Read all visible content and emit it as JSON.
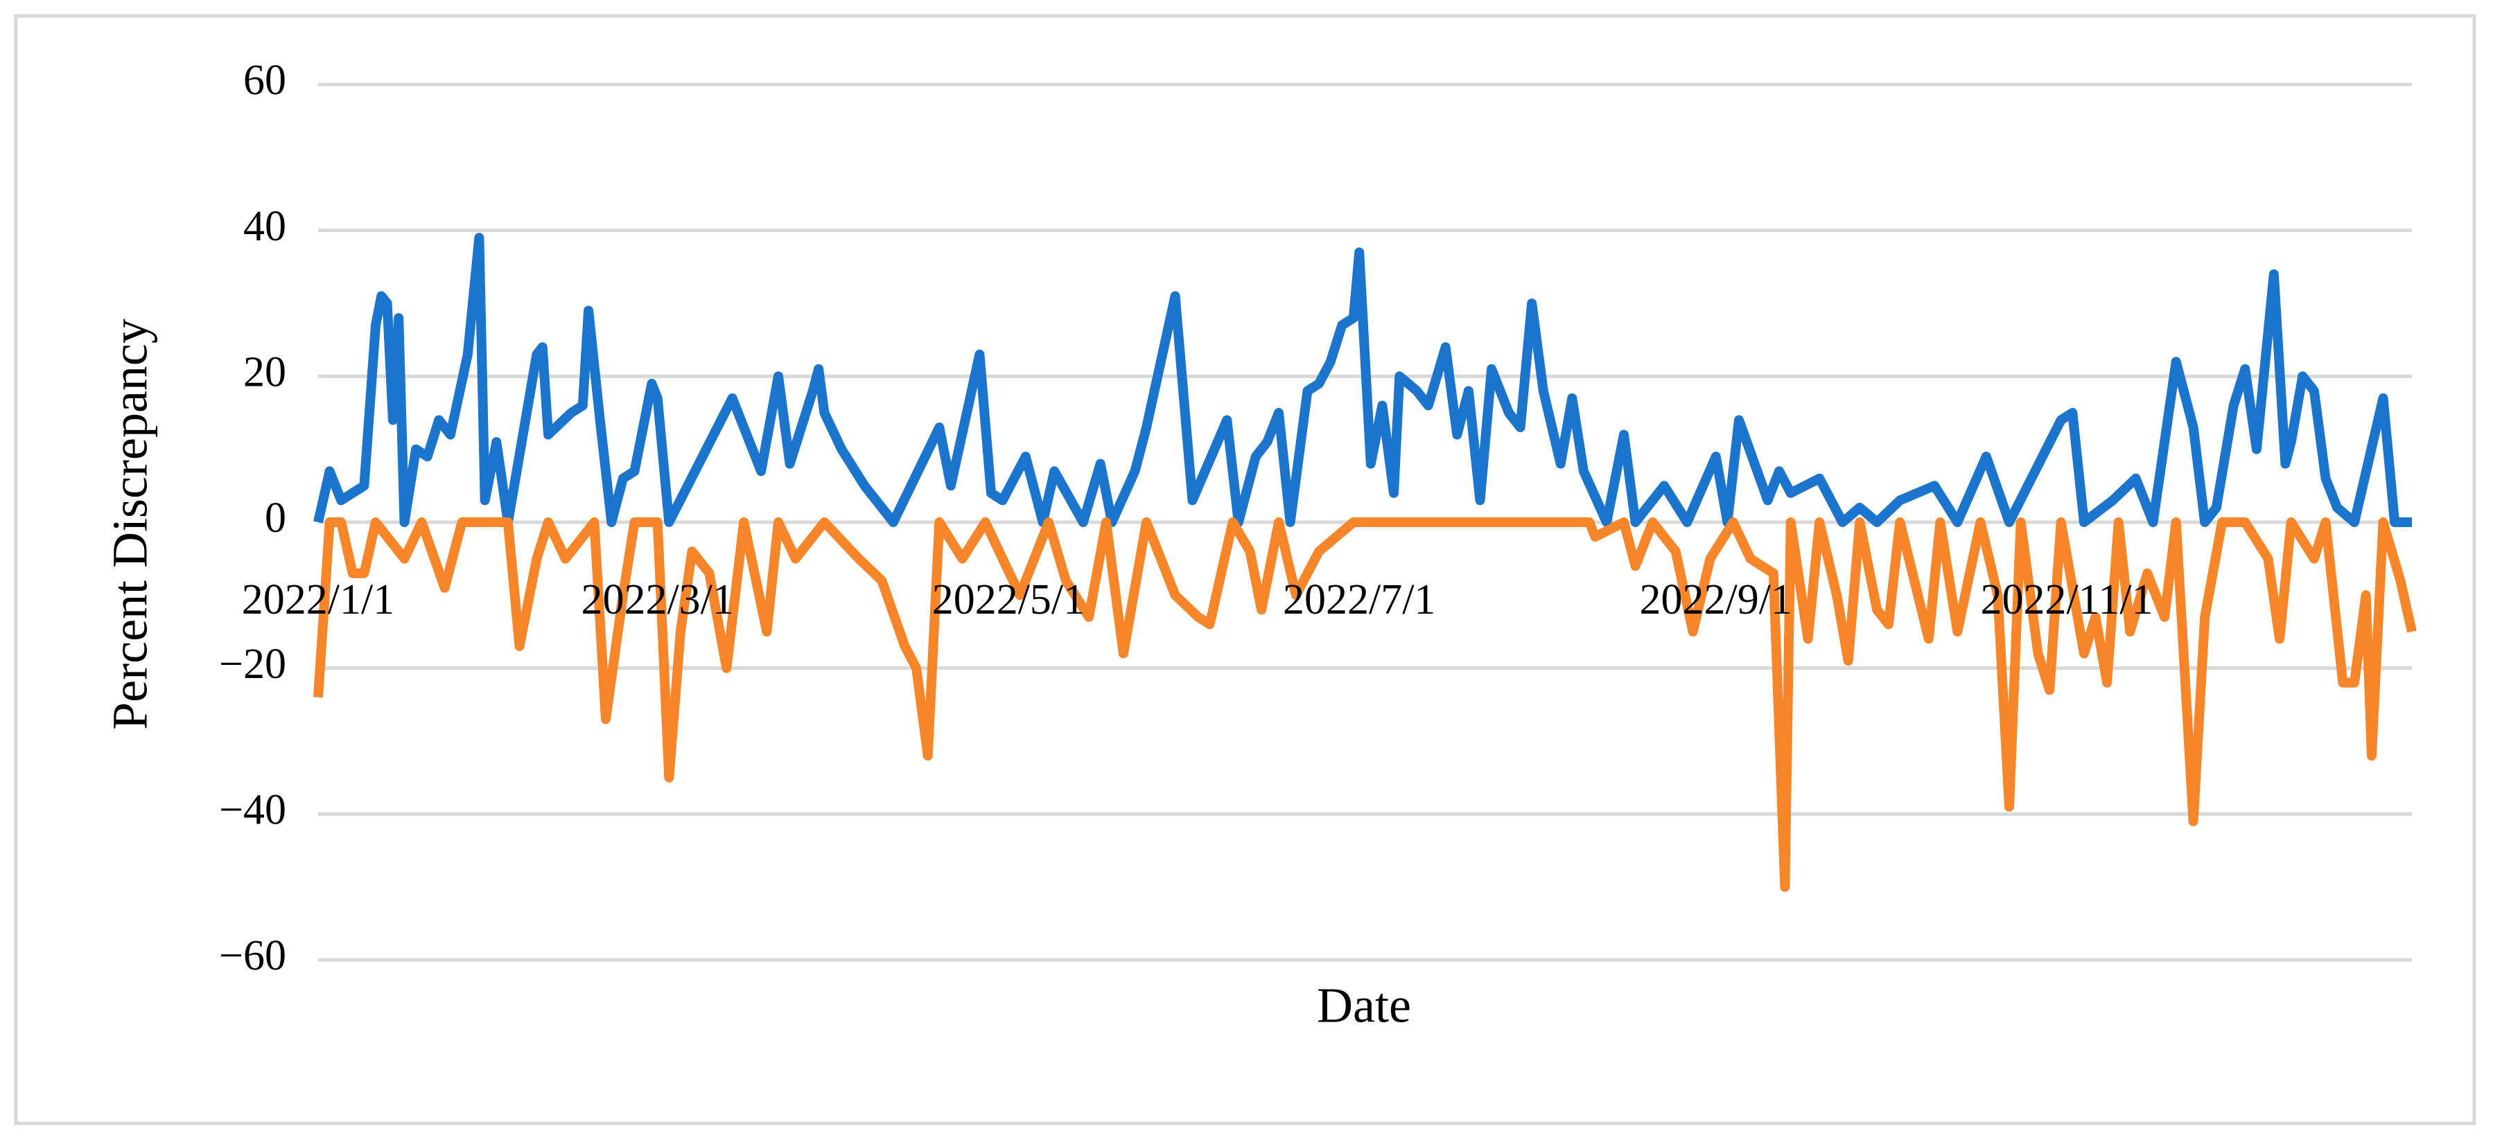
{
  "chart_data": {
    "type": "line",
    "x_label": "Date",
    "y_label": "Percent Discrepancy",
    "xlim": [
      "2022/1/1",
      "2022/12/31"
    ],
    "xticks": [
      "2022/1/1",
      "2022/3/1",
      "2022/5/1",
      "2022/7/1",
      "2022/9/1",
      "2022/11/1"
    ],
    "ylim": [
      -60,
      60
    ],
    "yticks": [
      60,
      40,
      20,
      0,
      {
        "value": -20,
        "label": "−20"
      },
      {
        "value": -40,
        "label": "−40"
      },
      {
        "value": -60,
        "label": "−60"
      }
    ],
    "grid": true,
    "series": [
      {
        "color": "#1b75cc",
        "x": [
          "2022/1/1",
          "2022/1/3",
          "2022/1/5",
          "2022/1/9",
          "2022/1/11",
          "2022/1/12",
          "2022/1/13",
          "2022/1/14",
          "2022/1/15",
          "2022/1/16",
          "2022/1/18",
          "2022/1/20",
          "2022/1/22",
          "2022/1/24",
          "2022/1/27",
          "2022/1/29",
          "2022/1/30",
          "2022/2/1",
          "2022/2/3",
          "2022/2/8",
          "2022/2/9",
          "2022/2/10",
          "2022/2/14",
          "2022/2/16",
          "2022/2/17",
          "2022/2/19",
          "2022/2/21",
          "2022/2/23",
          "2022/2/25",
          "2022/2/28",
          "2022/3/1",
          "2022/3/3",
          "2022/3/14",
          "2022/3/17",
          "2022/3/19",
          "2022/3/22",
          "2022/3/24",
          "2022/3/28",
          "2022/3/29",
          "2022/3/30",
          "2022/4/2",
          "2022/4/6",
          "2022/4/11",
          "2022/4/19",
          "2022/4/21",
          "2022/4/26",
          "2022/4/28",
          "2022/4/30",
          "2022/5/4",
          "2022/5/7",
          "2022/5/9",
          "2022/5/14",
          "2022/5/17",
          "2022/5/19",
          "2022/5/23",
          "2022/5/25",
          "2022/5/30",
          "2022/6/2",
          "2022/6/8",
          "2022/6/10",
          "2022/6/13",
          "2022/6/15",
          "2022/6/17",
          "2022/6/19",
          "2022/6/22",
          "2022/6/24",
          "2022/6/26",
          "2022/6/28",
          "2022/6/30",
          "2022/7/1",
          "2022/7/3",
          "2022/7/5",
          "2022/7/7",
          "2022/7/8",
          "2022/7/11",
          "2022/7/13",
          "2022/7/16",
          "2022/7/18",
          "2022/7/20",
          "2022/7/22",
          "2022/7/24",
          "2022/7/27",
          "2022/7/29",
          "2022/7/31",
          "2022/8/2",
          "2022/8/5",
          "2022/8/7",
          "2022/8/9",
          "2022/8/13",
          "2022/8/16",
          "2022/8/18",
          "2022/8/23",
          "2022/8/27",
          "2022/9/1",
          "2022/9/3",
          "2022/9/5",
          "2022/9/10",
          "2022/9/12",
          "2022/9/14",
          "2022/9/19",
          "2022/9/23",
          "2022/9/26",
          "2022/9/29",
          "2022/10/3",
          "2022/10/9",
          "2022/10/13",
          "2022/10/18",
          "2022/10/22",
          "2022/10/31",
          "2022/11/2",
          "2022/11/4",
          "2022/11/9",
          "2022/11/13",
          "2022/11/16",
          "2022/11/20",
          "2022/11/23",
          "2022/11/25",
          "2022/11/27",
          "2022/11/30",
          "2022/12/2",
          "2022/12/4",
          "2022/12/7",
          "2022/12/9",
          "2022/12/10",
          "2022/12/12",
          "2022/12/14",
          "2022/12/16",
          "2022/12/18",
          "2022/12/21",
          "2022/12/26",
          "2022/12/28",
          "2022/12/31"
        ],
        "values": [
          0,
          7,
          3,
          5,
          27,
          31,
          30,
          14,
          28,
          0,
          10,
          9,
          14,
          12,
          23,
          39,
          3,
          11,
          0,
          23,
          24,
          12,
          15,
          16,
          29,
          14,
          0,
          6,
          7,
          19,
          17,
          0,
          17,
          11,
          7,
          20,
          8,
          18,
          21,
          15,
          10,
          5,
          0,
          13,
          5,
          23,
          4,
          3,
          9,
          0,
          7,
          0,
          8,
          0,
          7,
          13,
          31,
          3,
          14,
          0,
          9,
          11,
          15,
          0,
          18,
          19,
          22,
          27,
          28,
          37,
          8,
          16,
          4,
          20,
          18,
          16,
          24,
          12,
          18,
          3,
          21,
          15,
          13,
          30,
          18,
          8,
          17,
          7,
          0,
          12,
          0,
          5,
          0,
          9,
          0,
          14,
          3,
          7,
          4,
          6,
          0,
          2,
          0,
          3,
          5,
          0,
          9,
          0,
          14,
          15,
          0,
          3,
          6,
          0,
          22,
          13,
          0,
          2,
          16,
          21,
          10,
          34,
          8,
          11,
          20,
          18,
          6,
          2,
          0,
          17,
          0,
          0
        ]
      },
      {
        "color": "#f7862b",
        "x": [
          "2022/1/1",
          "2022/1/3",
          "2022/1/5",
          "2022/1/7",
          "2022/1/9",
          "2022/1/11",
          "2022/1/16",
          "2022/1/19",
          "2022/1/23",
          "2022/1/26",
          "2022/2/3",
          "2022/2/5",
          "2022/2/8",
          "2022/2/10",
          "2022/2/13",
          "2022/2/18",
          "2022/2/20",
          "2022/2/23",
          "2022/2/25",
          "2022/3/1",
          "2022/3/3",
          "2022/3/5",
          "2022/3/7",
          "2022/3/10",
          "2022/3/13",
          "2022/3/16",
          "2022/3/20",
          "2022/3/22",
          "2022/3/25",
          "2022/3/30",
          "2022/4/5",
          "2022/4/9",
          "2022/4/13",
          "2022/4/15",
          "2022/4/17",
          "2022/4/19",
          "2022/4/23",
          "2022/4/27",
          "2022/4/30",
          "2022/5/3",
          "2022/5/8",
          "2022/5/11",
          "2022/5/15",
          "2022/5/18",
          "2022/5/21",
          "2022/5/25",
          "2022/5/30",
          "2022/6/3",
          "2022/6/5",
          "2022/6/9",
          "2022/6/12",
          "2022/6/14",
          "2022/6/17",
          "2022/6/20",
          "2022/6/24",
          "2022/6/30",
          "2022/8/10",
          "2022/8/11",
          "2022/8/16",
          "2022/8/18",
          "2022/8/21",
          "2022/8/25",
          "2022/8/28",
          "2022/8/31",
          "2022/9/4",
          "2022/9/7",
          "2022/9/11",
          "2022/9/13",
          "2022/9/14",
          "2022/9/17",
          "2022/9/19",
          "2022/9/22",
          "2022/9/24",
          "2022/9/26",
          "2022/9/29",
          "2022/10/1",
          "2022/10/3",
          "2022/10/8",
          "2022/10/10",
          "2022/10/13",
          "2022/10/17",
          "2022/10/20",
          "2022/10/22",
          "2022/10/24",
          "2022/10/27",
          "2022/10/29",
          "2022/10/31",
          "2022/11/4",
          "2022/11/6",
          "2022/11/8",
          "2022/11/10",
          "2022/11/12",
          "2022/11/15",
          "2022/11/18",
          "2022/11/20",
          "2022/11/23",
          "2022/11/25",
          "2022/11/28",
          "2022/12/2",
          "2022/12/6",
          "2022/12/8",
          "2022/12/10",
          "2022/12/14",
          "2022/12/16",
          "2022/12/19",
          "2022/12/21",
          "2022/12/23",
          "2022/12/24",
          "2022/12/26",
          "2022/12/29",
          "2022/12/31"
        ],
        "values": [
          -24,
          0,
          0,
          -7,
          -7,
          0,
          -5,
          0,
          -9,
          0,
          0,
          -17,
          -5,
          0,
          -5,
          0,
          -27,
          -10,
          0,
          0,
          -35,
          -15,
          -4,
          -7,
          -20,
          0,
          -15,
          0,
          -5,
          0,
          -5,
          -8,
          -17,
          -20,
          -32,
          0,
          -5,
          0,
          -5,
          -10,
          0,
          -8,
          -13,
          0,
          -18,
          0,
          -10,
          -13,
          -14,
          0,
          -4,
          -12,
          0,
          -10,
          -4,
          0,
          0,
          -2,
          0,
          -6,
          0,
          -4,
          -15,
          -5,
          0,
          -5,
          -7,
          -50,
          0,
          -16,
          0,
          -10,
          -19,
          0,
          -12,
          -14,
          0,
          -16,
          0,
          -15,
          0,
          -10,
          -39,
          0,
          -18,
          -23,
          0,
          -18,
          -13,
          -22,
          0,
          -15,
          -7,
          -13,
          0,
          -41,
          -13,
          0,
          0,
          -5,
          -16,
          0,
          -5,
          0,
          -22,
          -22,
          -10,
          -32,
          0,
          -8,
          -15
        ]
      }
    ]
  }
}
